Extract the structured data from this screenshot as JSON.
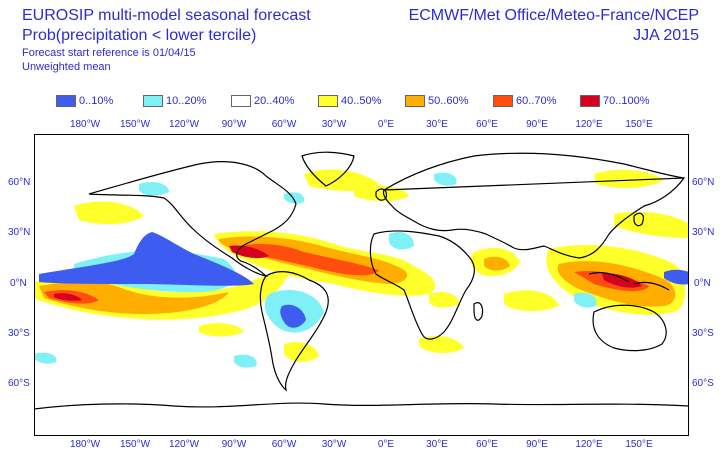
{
  "header": {
    "title_line1": "EUROSIP multi-model seasonal forecast",
    "title_line2": "Prob(precipitation < lower tercile)",
    "forecast_ref": "Forecast start reference is 01/04/15",
    "mean_type": "Unweighted mean",
    "centres": "ECMWF/Met Office/Meteo-France/NCEP",
    "season": "JJA 2015"
  },
  "legend": [
    {
      "label": "0..10%",
      "color": "#3f5cf0"
    },
    {
      "label": "10..20%",
      "color": "#7ff0f6"
    },
    {
      "label": "20..40%",
      "color": "#ffffff"
    },
    {
      "label": "40..50%",
      "color": "#ffff2a"
    },
    {
      "label": "50..60%",
      "color": "#ffae00"
    },
    {
      "label": "60..70%",
      "color": "#ff4e0e"
    },
    {
      "label": "70..100%",
      "color": "#d6001f"
    }
  ],
  "lon_labels": [
    "180°W",
    "150°W",
    "120°W",
    "90°W",
    "60°W",
    "30°W",
    "0°E",
    "30°E",
    "60°E",
    "90°E",
    "120°E",
    "150°E"
  ],
  "lat_labels_left": [
    "60°N",
    "30°N",
    "0°N",
    "30°S",
    "60°S"
  ],
  "lat_labels_right": [
    "60°N",
    "30°N",
    "0°N",
    "30°S",
    "60°S"
  ]
}
